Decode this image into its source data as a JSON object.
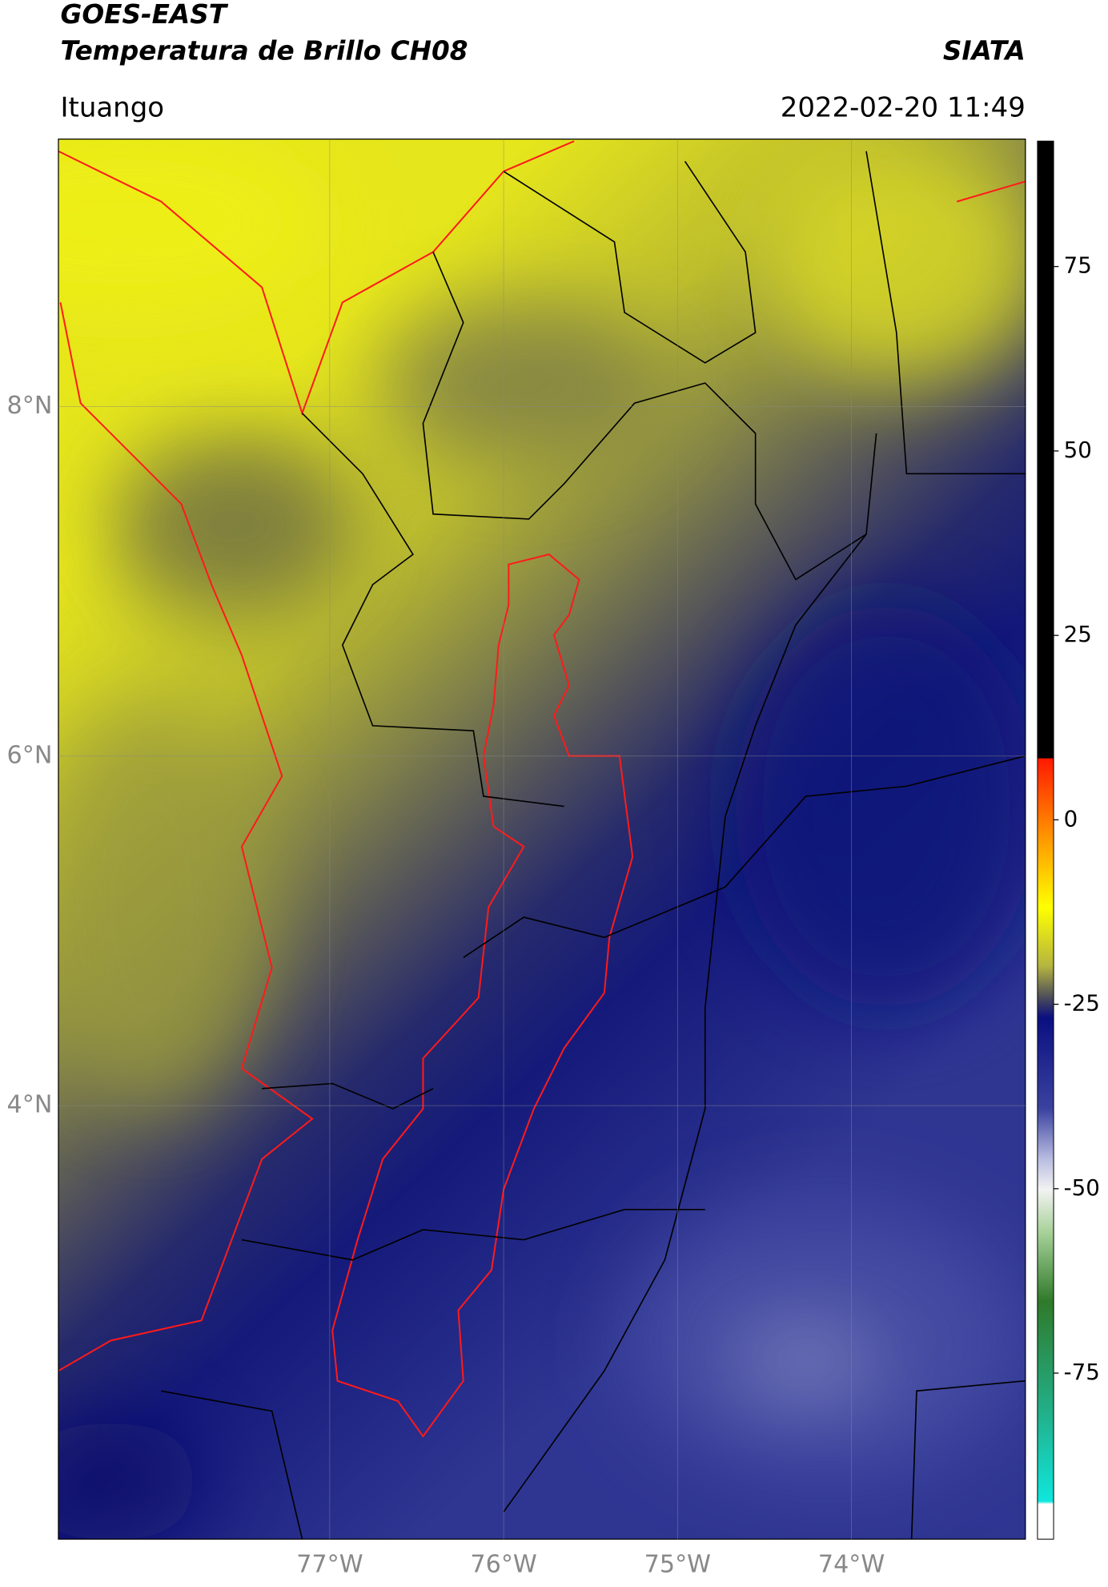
{
  "header": {
    "title": "GOES-EAST",
    "subtitle": "Temperatura de Brillo CH08",
    "organization": "SIATA",
    "location": "Ituango",
    "datetime": "2022-02-20 11:49"
  },
  "map": {
    "xlim": [
      -78.56,
      -73.0
    ],
    "ylim": [
      1.52,
      9.53
    ],
    "xticks": [
      {
        "value": -77,
        "label": "77°W"
      },
      {
        "value": -76,
        "label": "76°W"
      },
      {
        "value": -75,
        "label": "75°W"
      },
      {
        "value": -74,
        "label": "74°W"
      }
    ],
    "yticks": [
      {
        "value": 8,
        "label": "8°N"
      },
      {
        "value": 6,
        "label": "6°N"
      },
      {
        "value": 4,
        "label": "4°N"
      }
    ],
    "grid": true
  },
  "colorbar": {
    "lim": [
      -97.5,
      92
    ],
    "ticks": [
      75,
      50,
      25,
      0,
      -25,
      -50,
      -75
    ]
  }
}
